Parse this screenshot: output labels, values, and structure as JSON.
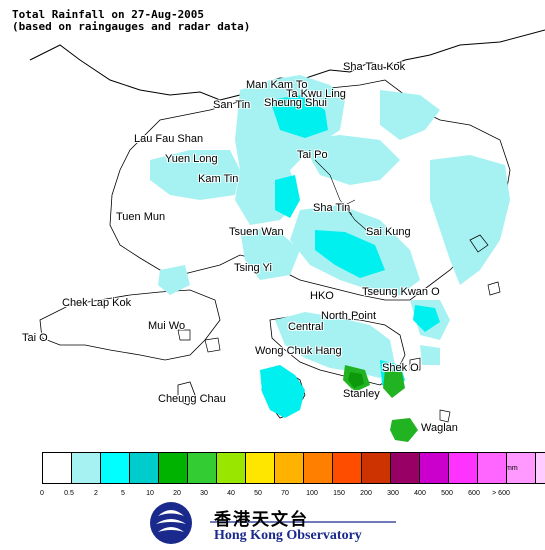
{
  "title_line1": "Total Rainfall on 27-Aug-2005",
  "title_line2": "(based on raingauges and radar data)",
  "places": [
    {
      "name": "Sha Tau Kok"
    },
    {
      "name": "Man Kam To"
    },
    {
      "name": "Ta Kwu Ling"
    },
    {
      "name": "San Tin"
    },
    {
      "name": "Sheung Shui"
    },
    {
      "name": "Lau Fau Shan"
    },
    {
      "name": "Yuen Long"
    },
    {
      "name": "Tai Po"
    },
    {
      "name": "Kam Tin"
    },
    {
      "name": "Sha Tin"
    },
    {
      "name": "Tuen Mun"
    },
    {
      "name": "Tsuen Wan"
    },
    {
      "name": "Sai Kung"
    },
    {
      "name": "Tsing Yi"
    },
    {
      "name": "Chek Lap Kok"
    },
    {
      "name": "HKO"
    },
    {
      "name": "Tseung Kwan O"
    },
    {
      "name": "Mui Wo"
    },
    {
      "name": "North Point"
    },
    {
      "name": "Central"
    },
    {
      "name": "Tai O"
    },
    {
      "name": "Wong Chuk Hang"
    },
    {
      "name": "Shek O"
    },
    {
      "name": "Cheung Chau"
    },
    {
      "name": "Stanley"
    },
    {
      "name": "Waglan"
    }
  ],
  "legend": {
    "unit": "mm",
    "colors": [
      "#ffffff",
      "#a6f2f2",
      "#00ffff",
      "#00cccc",
      "#00b300",
      "#33cc33",
      "#99e600",
      "#ffe600",
      "#ffb300",
      "#ff8000",
      "#ff4d00",
      "#cc3300",
      "#990066",
      "#cc00cc",
      "#ff33ff",
      "#ff66ff",
      "#ff99ff",
      "#ffccff"
    ],
    "ticks": [
      "0",
      "0.5",
      "2",
      "5",
      "10",
      "20",
      "30",
      "40",
      "50",
      "70",
      "100",
      "150",
      "200",
      "300",
      "400",
      "500",
      "600",
      "> 600"
    ]
  },
  "logo": {
    "chinese": "香港天文台",
    "english": "Hong Kong Observatory"
  }
}
